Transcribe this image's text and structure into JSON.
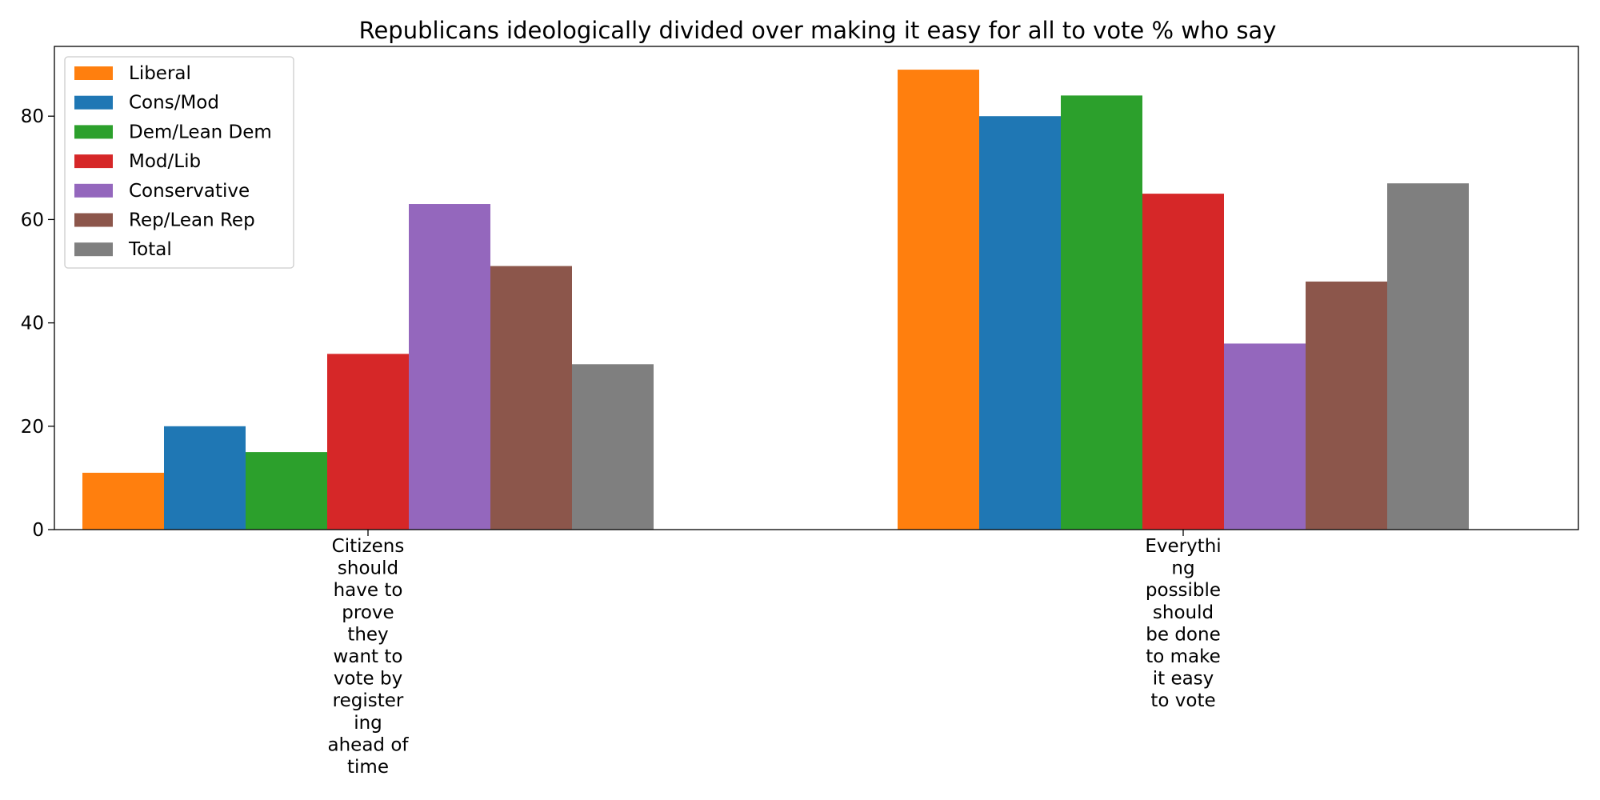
{
  "chart_data": {
    "type": "bar",
    "title": "Republicans ideologically divided over making it easy for all to vote % who say",
    "xlabel": "",
    "ylabel": "",
    "categories": [
      [
        "Citizens",
        "should",
        "have to",
        "prove",
        "they",
        "want to",
        "vote by",
        "register",
        "ing",
        "ahead of",
        "time"
      ],
      [
        "Everythi",
        "ng",
        "possible",
        "should",
        "be done",
        "to make",
        "it easy",
        "to vote"
      ]
    ],
    "series": [
      {
        "name": "Liberal",
        "color": "#ff7f0e",
        "values": [
          11,
          89
        ]
      },
      {
        "name": "Cons/Mod",
        "color": "#1f77b4",
        "values": [
          20,
          80
        ]
      },
      {
        "name": "Dem/Lean Dem",
        "color": "#2ca02c",
        "values": [
          15,
          84
        ]
      },
      {
        "name": "Mod/Lib",
        "color": "#d62728",
        "values": [
          34,
          65
        ]
      },
      {
        "name": "Conservative",
        "color": "#9467bd",
        "values": [
          63,
          36
        ]
      },
      {
        "name": "Rep/Lean Rep",
        "color": "#8c564b",
        "values": [
          51,
          48
        ]
      },
      {
        "name": "Total",
        "color": "#7f7f7f",
        "values": [
          32,
          67
        ]
      }
    ],
    "ylim": [
      0,
      93.5
    ],
    "yticks": [
      0,
      20,
      40,
      60,
      80
    ],
    "legend_position": "top-left",
    "grid": false
  }
}
